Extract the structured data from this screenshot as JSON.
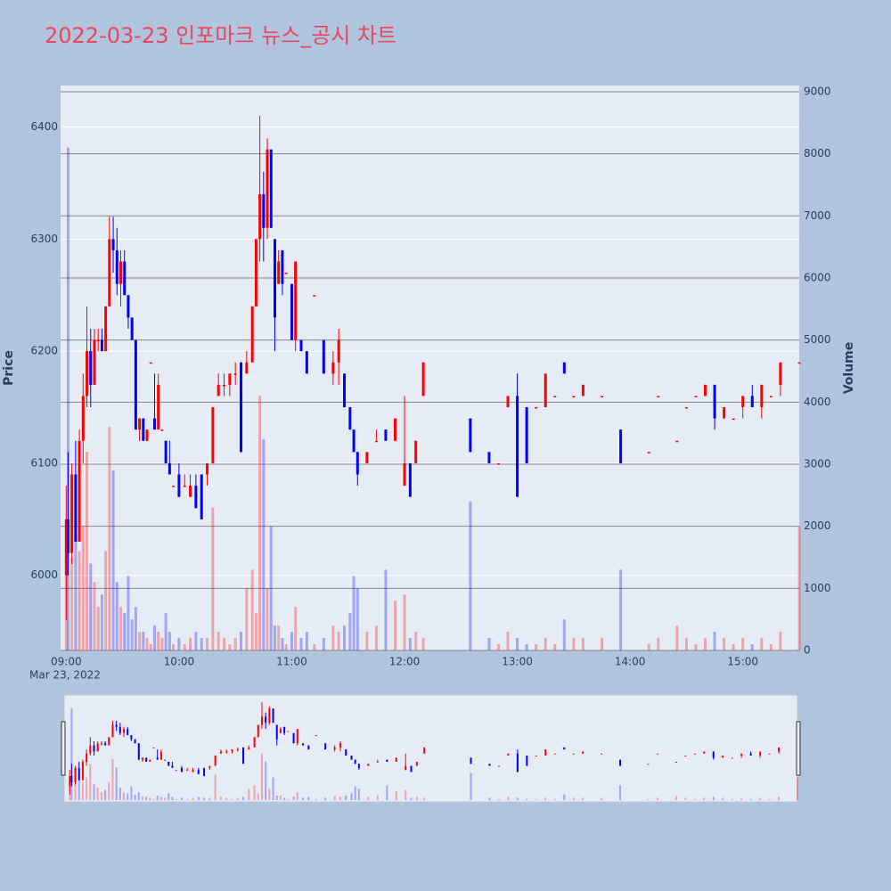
{
  "chart_data": {
    "type": "candlestick",
    "title": "2022-03-23 인포마크 뉴스_공시 차트",
    "y_label": "Price",
    "y2_label": "Volume",
    "x_date_label": "Mar 23, 2022",
    "increasing_color": "#ff0000",
    "decreasing_color": "#0000ff",
    "xlim": [
      "08:57",
      "15:30"
    ],
    "xticks": [
      "09:00",
      "10:00",
      "11:00",
      "12:00",
      "13:00",
      "14:00",
      "15:00"
    ],
    "ylim": [
      5933,
      6437
    ],
    "yticks": [
      6000,
      6100,
      6200,
      6300,
      6400
    ],
    "y2lim": [
      0,
      9100
    ],
    "y2ticks": [
      0,
      1000,
      2000,
      3000,
      4000,
      5000,
      6000,
      7000,
      8000,
      9000
    ],
    "rangeslider": true,
    "x": [
      "09:00",
      "09:01",
      "09:03",
      "09:05",
      "09:07",
      "09:09",
      "09:11",
      "09:13",
      "09:15",
      "09:17",
      "09:19",
      "09:21",
      "09:23",
      "09:25",
      "09:27",
      "09:29",
      "09:31",
      "09:33",
      "09:35",
      "09:37",
      "09:39",
      "09:41",
      "09:43",
      "09:45",
      "09:47",
      "09:49",
      "09:51",
      "09:53",
      "09:55",
      "09:57",
      "10:00",
      "10:03",
      "10:06",
      "10:09",
      "10:12",
      "10:15",
      "10:18",
      "10:21",
      "10:24",
      "10:27",
      "10:30",
      "10:33",
      "10:36",
      "10:39",
      "10:41",
      "10:43",
      "10:45",
      "10:47",
      "10:49",
      "10:51",
      "10:53",
      "10:55",
      "10:57",
      "11:00",
      "11:02",
      "11:05",
      "11:08",
      "11:12",
      "11:17",
      "11:22",
      "11:25",
      "11:28",
      "11:31",
      "11:33",
      "11:35",
      "11:40",
      "11:45",
      "11:50",
      "11:55",
      "12:00",
      "12:03",
      "12:06",
      "12:10",
      "12:35",
      "12:45",
      "12:50",
      "12:55",
      "13:00",
      "13:05",
      "13:10",
      "13:15",
      "13:20",
      "13:25",
      "13:30",
      "13:35",
      "13:45",
      "13:55",
      "14:10",
      "14:15",
      "14:25",
      "14:30",
      "14:35",
      "14:40",
      "14:45",
      "14:50",
      "14:55",
      "15:00",
      "15:05",
      "15:10",
      "15:15",
      "15:20",
      "15:30"
    ],
    "open": [
      6000,
      6050,
      6020,
      6090,
      6030,
      6120,
      6160,
      6200,
      6170,
      6210,
      6210,
      6200,
      6240,
      6300,
      6290,
      6260,
      6280,
      6250,
      6230,
      6210,
      6130,
      6140,
      6120,
      6190,
      6140,
      6130,
      6130,
      6120,
      6100,
      6080,
      6090,
      6080,
      6070,
      6080,
      6090,
      6090,
      6100,
      6160,
      6170,
      6170,
      6180,
      6190,
      6180,
      6190,
      6240,
      6300,
      6340,
      6310,
      6380,
      6300,
      6260,
      6290,
      6270,
      6260,
      6210,
      6210,
      6200,
      6250,
      6210,
      6180,
      6190,
      6180,
      6150,
      6130,
      6110,
      6100,
      6120,
      6130,
      6120,
      6080,
      6100,
      6100,
      6160,
      6140,
      6110,
      6100,
      6150,
      6160,
      6150,
      6150,
      6150,
      6160,
      6190,
      6160,
      6160,
      6160,
      6130,
      6110,
      6160,
      6120,
      6150,
      6160,
      6160,
      6170,
      6140,
      6140,
      6150,
      6160,
      6150,
      6160,
      6170,
      6190
    ],
    "high": [
      6080,
      6110,
      6100,
      6120,
      6130,
      6180,
      6240,
      6220,
      6220,
      6220,
      6220,
      6240,
      6320,
      6320,
      6310,
      6290,
      6290,
      6250,
      6230,
      6210,
      6140,
      6140,
      6130,
      6190,
      6180,
      6180,
      6130,
      6120,
      6120,
      6080,
      6100,
      6090,
      6090,
      6090,
      6090,
      6100,
      6150,
      6180,
      6180,
      6180,
      6190,
      6190,
      6200,
      6240,
      6300,
      6410,
      6360,
      6390,
      6380,
      6300,
      6290,
      6290,
      6270,
      6260,
      6280,
      6210,
      6200,
      6250,
      6210,
      6200,
      6220,
      6180,
      6150,
      6130,
      6110,
      6110,
      6130,
      6130,
      6140,
      6160,
      6100,
      6120,
      6190,
      6140,
      6110,
      6100,
      6160,
      6180,
      6150,
      6150,
      6180,
      6160,
      6190,
      6160,
      6170,
      6160,
      6130,
      6110,
      6160,
      6120,
      6150,
      6160,
      6170,
      6170,
      6150,
      6140,
      6160,
      6170,
      6170,
      6160,
      6190,
      6190
    ],
    "low": [
      5960,
      6000,
      6010,
      6030,
      6030,
      6100,
      6150,
      6150,
      6170,
      6200,
      6200,
      6200,
      6240,
      6270,
      6250,
      6240,
      6250,
      6220,
      6210,
      6130,
      6120,
      6120,
      6120,
      6190,
      6130,
      6130,
      6130,
      6100,
      6090,
      6080,
      6070,
      6080,
      6070,
      6060,
      6050,
      6080,
      6100,
      6160,
      6160,
      6160,
      6170,
      6110,
      6180,
      6190,
      6240,
      6280,
      6280,
      6300,
      6310,
      6200,
      6260,
      6250,
      6270,
      6210,
      6200,
      6200,
      6180,
      6250,
      6180,
      6170,
      6170,
      6150,
      6130,
      6110,
      6080,
      6100,
      6120,
      6120,
      6120,
      6080,
      6070,
      6100,
      6160,
      6110,
      6100,
      6100,
      6150,
      6070,
      6100,
      6150,
      6150,
      6160,
      6180,
      6160,
      6160,
      6160,
      6100,
      6110,
      6160,
      6120,
      6150,
      6160,
      6160,
      6130,
      6140,
      6140,
      6140,
      6150,
      6140,
      6160,
      6160,
      6190
    ],
    "close": [
      6050,
      6020,
      6090,
      6030,
      6120,
      6160,
      6200,
      6170,
      6210,
      6210,
      6200,
      6240,
      6300,
      6290,
      6260,
      6280,
      6250,
      6230,
      6210,
      6130,
      6140,
      6120,
      6130,
      6190,
      6130,
      6170,
      6130,
      6100,
      6090,
      6080,
      6070,
      6080,
      6080,
      6060,
      6050,
      6100,
      6150,
      6170,
      6170,
      6180,
      6180,
      6110,
      6190,
      6240,
      6300,
      6340,
      6310,
      6380,
      6310,
      6230,
      6280,
      6260,
      6270,
      6210,
      6280,
      6200,
      6180,
      6250,
      6180,
      6190,
      6210,
      6150,
      6130,
      6110,
      6090,
      6110,
      6120,
      6120,
      6140,
      6100,
      6070,
      6120,
      6190,
      6110,
      6100,
      6100,
      6160,
      6070,
      6100,
      6150,
      6180,
      6160,
      6180,
      6160,
      6170,
      6160,
      6100,
      6110,
      6160,
      6120,
      6150,
      6160,
      6170,
      6140,
      6150,
      6140,
      6160,
      6150,
      6170,
      6160,
      6190,
      6190
    ],
    "volume": [
      1200,
      8100,
      1500,
      1800,
      1600,
      2000,
      3200,
      1400,
      1100,
      700,
      900,
      1600,
      3600,
      2900,
      1100,
      700,
      600,
      1200,
      500,
      700,
      300,
      300,
      200,
      100,
      400,
      300,
      200,
      600,
      300,
      100,
      200,
      100,
      200,
      300,
      200,
      200,
      2300,
      300,
      200,
      100,
      200,
      300,
      1000,
      1300,
      600,
      4100,
      3400,
      1000,
      2000,
      400,
      400,
      200,
      100,
      300,
      700,
      200,
      300,
      100,
      200,
      400,
      300,
      400,
      600,
      1200,
      1000,
      300,
      400,
      1300,
      800,
      900,
      200,
      300,
      200,
      2400,
      200,
      100,
      300,
      200,
      100,
      100,
      200,
      100,
      500,
      200,
      200,
      200,
      1300,
      100,
      200,
      400,
      200,
      100,
      200,
      300,
      200,
      100,
      200,
      100,
      200,
      100,
      300,
      2000
    ]
  }
}
